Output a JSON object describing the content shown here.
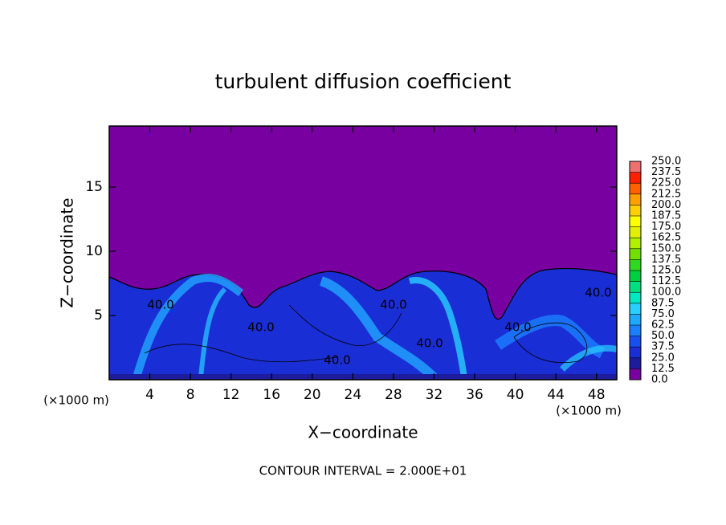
{
  "chart_data": {
    "type": "contour",
    "title": "turbulent diffusion coefficient",
    "x_label": "X−coordinate",
    "y_label": "Z−coordinate",
    "x_unit_label": "(×1000 m)",
    "xlim": [
      0,
      50
    ],
    "xticks": [
      4,
      8,
      12,
      16,
      20,
      24,
      28,
      32,
      36,
      40,
      44,
      48
    ],
    "ylim": [
      0,
      19.75
    ],
    "yticks": [
      5,
      10,
      15
    ],
    "contour_labels": [
      "40.0",
      "40.0",
      "40.0",
      "40.0",
      "40.0",
      "40.0",
      "40.0"
    ],
    "annotation": "CONTOUR INTERVAL = 2.000E+01",
    "colorbar": {
      "levels": [
        {
          "value": 0,
          "label": "0.0"
        },
        {
          "value": 12.5,
          "label": "12.5"
        },
        {
          "value": 25,
          "label": "25.0"
        },
        {
          "value": 37.5,
          "label": "37.5"
        },
        {
          "value": 50,
          "label": "50.0"
        },
        {
          "value": 62.5,
          "label": "62.5"
        },
        {
          "value": 75,
          "label": "75.0"
        },
        {
          "value": 87.5,
          "label": "87.5"
        },
        {
          "value": 100,
          "label": "100.0"
        },
        {
          "value": 112.5,
          "label": "112.5"
        },
        {
          "value": 125,
          "label": "125.0"
        },
        {
          "value": 137.5,
          "label": "137.5"
        },
        {
          "value": 150,
          "label": "150.0"
        },
        {
          "value": 162.5,
          "label": "162.5"
        },
        {
          "value": 175,
          "label": "175.0"
        },
        {
          "value": 187.5,
          "label": "187.5"
        },
        {
          "value": 200,
          "label": "200.0"
        },
        {
          "value": 212.5,
          "label": "212.5"
        },
        {
          "value": 225,
          "label": "225.0"
        },
        {
          "value": 237.5,
          "label": "237.5"
        },
        {
          "value": 250,
          "label": "250.0"
        }
      ],
      "colors": [
        "#7800a0",
        "#1c1c9c",
        "#1a2ed6",
        "#1650f0",
        "#1a80ff",
        "#20a8ff",
        "#28d0ff",
        "#00e8c0",
        "#00e080",
        "#00d040",
        "#30d820",
        "#70e000",
        "#b0f000",
        "#e0f000",
        "#ffff00",
        "#ffd000",
        "#ffa000",
        "#ff6000",
        "#ff2000",
        "#f07070"
      ]
    }
  }
}
